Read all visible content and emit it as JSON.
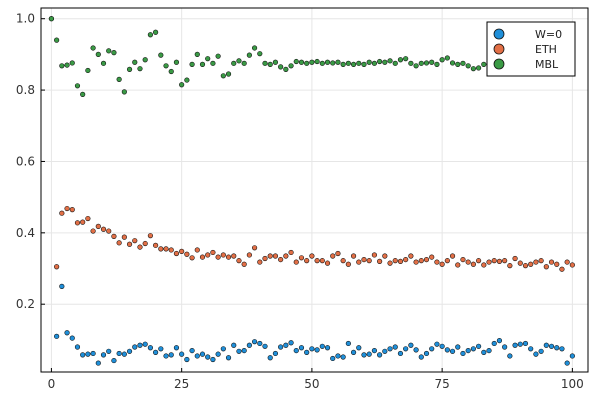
{
  "chart_data": {
    "type": "scatter",
    "xlim": [
      -2,
      103
    ],
    "ylim": [
      0.01,
      1.03
    ],
    "x_ticks": [
      0,
      25,
      50,
      75,
      100
    ],
    "x_tick_labels": [
      "0",
      "25",
      "50",
      "75",
      "100"
    ],
    "y_ticks": [
      0.2,
      0.4,
      0.6,
      0.8,
      1.0
    ],
    "y_tick_labels": [
      "0.2",
      "0.4",
      "0.6",
      "0.8",
      "1.0"
    ],
    "grid": true,
    "legend_position": "top-right",
    "x": [
      0,
      1,
      2,
      3,
      4,
      5,
      6,
      7,
      8,
      9,
      10,
      11,
      12,
      13,
      14,
      15,
      16,
      17,
      18,
      19,
      20,
      21,
      22,
      23,
      24,
      25,
      26,
      27,
      28,
      29,
      30,
      31,
      32,
      33,
      34,
      35,
      36,
      37,
      38,
      39,
      40,
      41,
      42,
      43,
      44,
      45,
      46,
      47,
      48,
      49,
      50,
      51,
      52,
      53,
      54,
      55,
      56,
      57,
      58,
      59,
      60,
      61,
      62,
      63,
      64,
      65,
      66,
      67,
      68,
      69,
      70,
      71,
      72,
      73,
      74,
      75,
      76,
      77,
      78,
      79,
      80,
      81,
      82,
      83,
      84,
      85,
      86,
      87,
      88,
      89,
      90,
      91,
      92,
      93,
      94,
      95,
      96,
      97,
      98,
      99,
      100
    ],
    "series": [
      {
        "name": "W=0",
        "color": "#1f8fd9",
        "values": [
          1.0,
          0.11,
          0.25,
          0.12,
          0.105,
          0.08,
          0.058,
          0.06,
          0.062,
          0.035,
          0.058,
          0.068,
          0.042,
          0.062,
          0.06,
          0.068,
          0.08,
          0.085,
          0.088,
          0.078,
          0.065,
          0.075,
          0.055,
          0.058,
          0.078,
          0.06,
          0.045,
          0.07,
          0.055,
          0.06,
          0.052,
          0.045,
          0.06,
          0.075,
          0.05,
          0.085,
          0.068,
          0.07,
          0.085,
          0.095,
          0.09,
          0.082,
          0.05,
          0.062,
          0.08,
          0.085,
          0.092,
          0.07,
          0.078,
          0.065,
          0.075,
          0.072,
          0.082,
          0.078,
          0.048,
          0.055,
          0.052,
          0.09,
          0.065,
          0.078,
          0.058,
          0.06,
          0.07,
          0.058,
          0.068,
          0.075,
          0.08,
          0.062,
          0.075,
          0.085,
          0.072,
          0.052,
          0.062,
          0.075,
          0.088,
          0.082,
          0.072,
          0.068,
          0.08,
          0.062,
          0.07,
          0.075,
          0.082,
          0.065,
          0.07,
          0.09,
          0.098,
          0.08,
          0.055,
          0.085,
          0.088,
          0.09,
          0.075,
          0.06,
          0.068,
          0.085,
          0.082,
          0.078,
          0.075,
          0.035,
          0.055
        ]
      },
      {
        "name": "ETH",
        "color": "#e26f46",
        "values": [
          null,
          0.305,
          0.455,
          0.468,
          0.465,
          0.428,
          0.43,
          0.44,
          0.405,
          0.418,
          0.41,
          0.405,
          0.39,
          0.372,
          0.388,
          0.368,
          0.378,
          0.36,
          0.37,
          0.392,
          0.365,
          0.355,
          0.355,
          0.352,
          0.342,
          0.348,
          0.34,
          0.33,
          0.352,
          0.332,
          0.338,
          0.345,
          0.332,
          0.338,
          0.332,
          0.335,
          0.322,
          0.312,
          0.338,
          0.358,
          0.318,
          0.328,
          0.335,
          0.335,
          0.325,
          0.335,
          0.345,
          0.318,
          0.33,
          0.322,
          0.335,
          0.322,
          0.322,
          0.315,
          0.335,
          0.342,
          0.322,
          0.312,
          0.335,
          0.318,
          0.325,
          0.322,
          0.338,
          0.32,
          0.335,
          0.315,
          0.322,
          0.32,
          0.325,
          0.335,
          0.318,
          0.322,
          0.325,
          0.332,
          0.318,
          0.312,
          0.322,
          0.335,
          0.31,
          0.325,
          0.318,
          0.312,
          0.322,
          0.31,
          0.318,
          0.322,
          0.32,
          0.322,
          0.308,
          0.328,
          0.315,
          0.308,
          0.312,
          0.318,
          0.322,
          0.305,
          0.318,
          0.312,
          0.298,
          0.318,
          0.31
        ]
      },
      {
        "name": "MBL",
        "color": "#3a9a45",
        "values": [
          1.0,
          0.94,
          0.868,
          0.87,
          0.876,
          0.812,
          0.788,
          0.855,
          0.918,
          0.9,
          0.875,
          0.91,
          0.905,
          0.83,
          0.795,
          0.858,
          0.878,
          0.86,
          0.885,
          0.955,
          0.962,
          0.898,
          0.868,
          0.852,
          0.878,
          0.815,
          0.828,
          0.872,
          0.9,
          0.872,
          0.888,
          0.875,
          0.895,
          0.84,
          0.845,
          0.875,
          0.882,
          0.875,
          0.898,
          0.918,
          0.902,
          0.875,
          0.872,
          0.878,
          0.865,
          0.858,
          0.868,
          0.88,
          0.878,
          0.875,
          0.878,
          0.88,
          0.875,
          0.878,
          0.876,
          0.878,
          0.872,
          0.875,
          0.872,
          0.875,
          0.872,
          0.878,
          0.875,
          0.88,
          0.878,
          0.882,
          0.875,
          0.885,
          0.888,
          0.875,
          0.868,
          0.875,
          0.876,
          0.878,
          0.872,
          0.885,
          0.89,
          0.876,
          0.872,
          0.875,
          0.868,
          0.86,
          0.862,
          0.872,
          0.88,
          0.878,
          0.885,
          0.888,
          0.882,
          0.875,
          0.87,
          0.885,
          0.875,
          0.878,
          0.875,
          0.868,
          0.872,
          0.868,
          0.875,
          0.865,
          0.865
        ]
      }
    ]
  }
}
